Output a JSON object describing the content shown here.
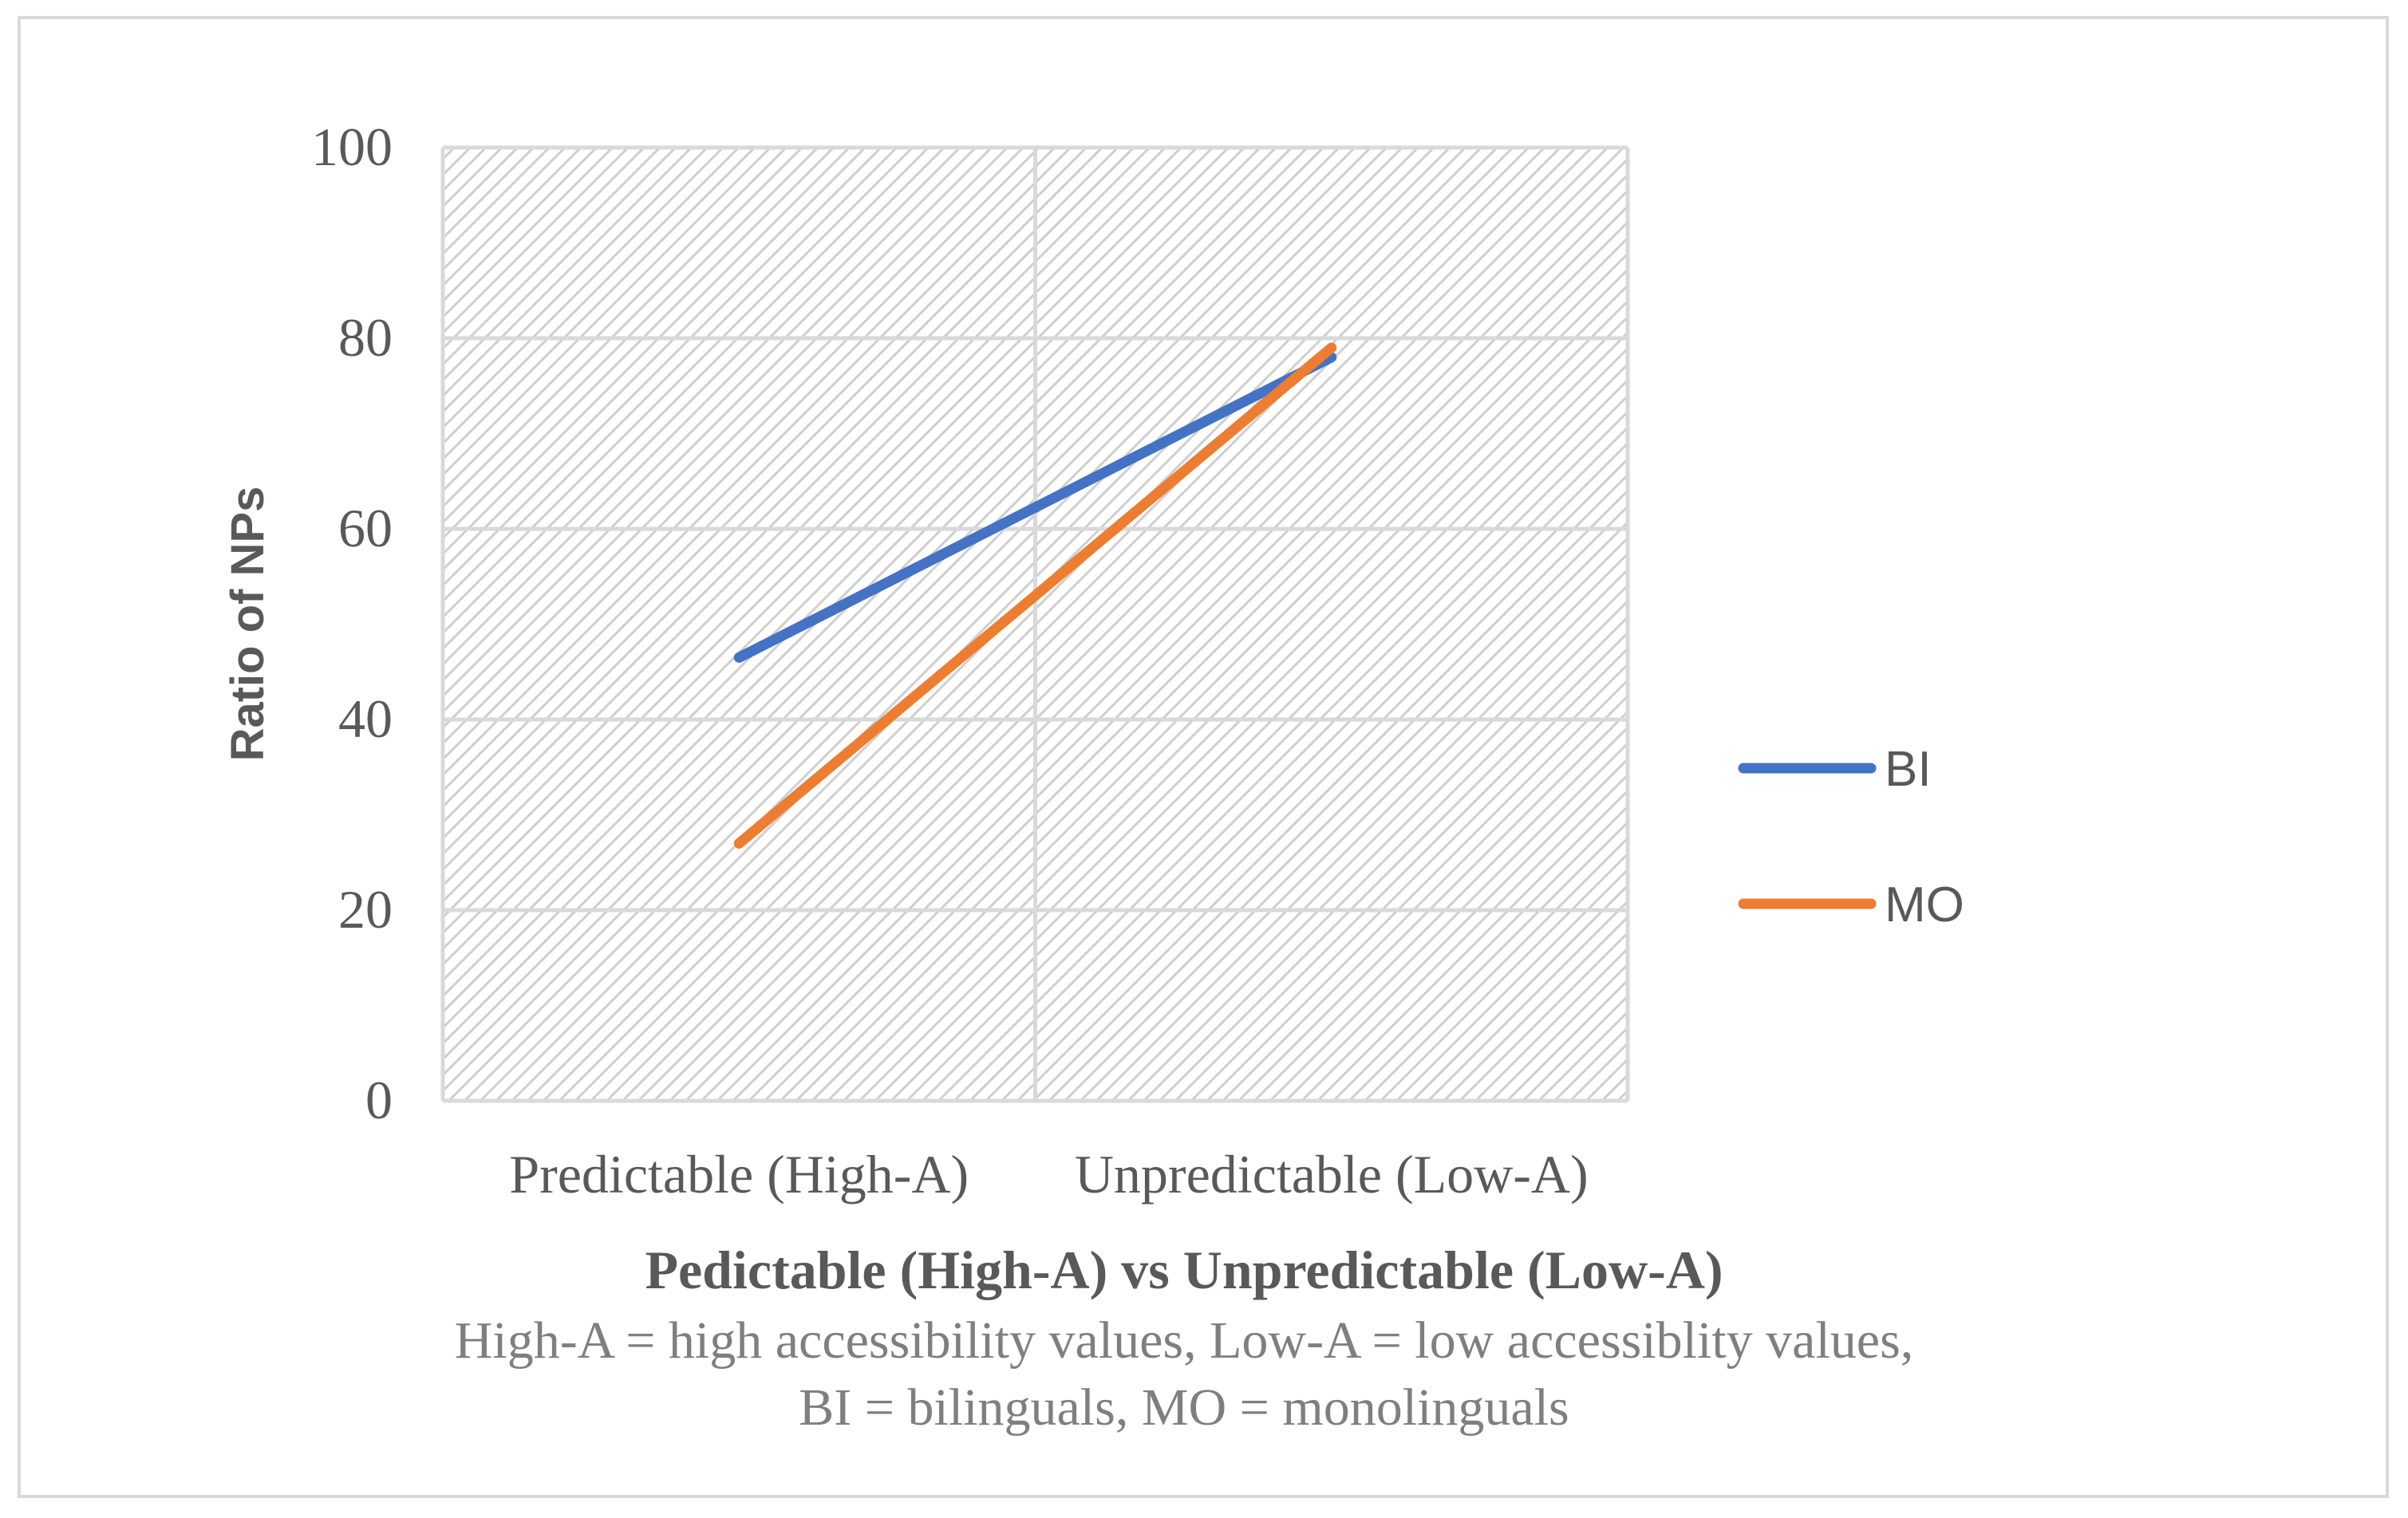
{
  "chart_data": {
    "type": "line",
    "categories": [
      "Predictable (High-A)",
      "Unpredictable (Low-A)"
    ],
    "series": [
      {
        "name": "BI",
        "values": [
          46.5,
          78
        ],
        "color": "#4472c4"
      },
      {
        "name": "MO",
        "values": [
          27,
          79
        ],
        "color": "#ed7d31"
      }
    ],
    "ylabel": "Ratio of NPs",
    "xlabel": "Pedictable (High-A) vs Unpredictable (Low-A)",
    "caption_lines": [
      "High-A = high accessibility values, Low-A = low accessiblity values,",
      "BI = bilinguals, MO = monolinguals"
    ],
    "ylim": [
      0,
      100
    ],
    "yticks": [
      0,
      20,
      40,
      60,
      80,
      100
    ],
    "ytick_labels": [
      "0",
      "20",
      "40",
      "60",
      "80",
      "100"
    ],
    "grid": true,
    "legend_position": "right"
  }
}
